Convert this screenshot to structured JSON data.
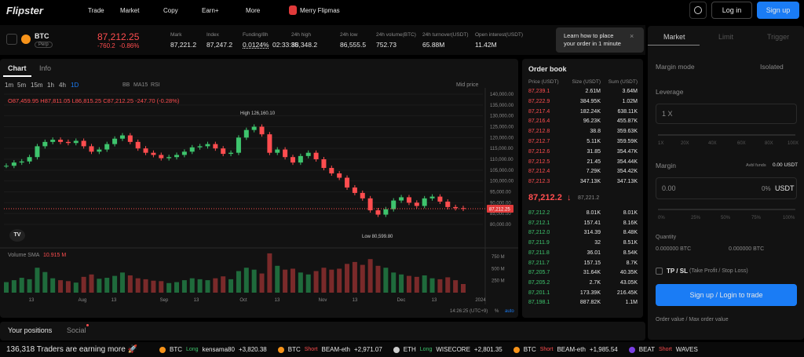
{
  "nav": {
    "logo": "Flipster",
    "menu": [
      "Trade",
      "Market",
      "Copy",
      "Earn+",
      "More"
    ],
    "promo": "Merry Flipmas",
    "login": "Log in",
    "signup": "Sign up"
  },
  "ticker": {
    "symbol": "BTC",
    "badge": "Perp",
    "price": "87,212.25",
    "change": "-760.2",
    "change_pct": "-0.86%",
    "stats": [
      {
        "label": "Mark",
        "value": "87,221.2"
      },
      {
        "label": "Index",
        "value": "87,247.2"
      },
      {
        "label": "Funding/8h",
        "value": "0.0124%",
        "extra": "02:33:35"
      },
      {
        "label": "24h high",
        "value": "88,348.2"
      },
      {
        "label": "24h low",
        "value": "86,555.5"
      },
      {
        "label": "24h volume(BTC)",
        "value": "752.73"
      },
      {
        "label": "24h turnover(USDT)",
        "value": "65.88M"
      },
      {
        "label": "Open interest(USDT)",
        "value": "11.42M"
      }
    ]
  },
  "tooltip": "Learn how to place your order in 1 minute",
  "chart": {
    "tabs": [
      "Chart",
      "Info"
    ],
    "intervals": [
      "1m",
      "5m",
      "15m",
      "1h",
      "4h",
      "1D"
    ],
    "indicators": [
      "BB",
      "MA15",
      "RSI"
    ],
    "price_source": "Mid price",
    "ohlc": "O87,459.95 H87,811.05 L86,815.25 C87,212.25 -247.70 (-0.28%)",
    "high_label": "High 126,160.10",
    "low_label": "Low 80,599.80",
    "last_price_label": "87,212.25",
    "volume_label": "Volume SMA",
    "volume_value": "10.915 M",
    "ylim": [
      80000,
      140000
    ],
    "yticks": [
      {
        "value": 140000,
        "label": "140,000.00"
      },
      {
        "value": 135000,
        "label": "135,000.00"
      },
      {
        "value": 130000,
        "label": "130,000.00"
      },
      {
        "value": 125000,
        "label": "125,000.00"
      },
      {
        "value": 120000,
        "label": "120,000.00"
      },
      {
        "value": 115000,
        "label": "115,000.00"
      },
      {
        "value": 110000,
        "label": "110,000.00"
      },
      {
        "value": 105000,
        "label": "105,000.00"
      },
      {
        "value": 100000,
        "label": "100,000.00"
      },
      {
        "value": 95000,
        "label": "95,000.00"
      },
      {
        "value": 90000,
        "label": "90,000.00"
      },
      {
        "value": 85000,
        "label": "85,000.00"
      },
      {
        "value": 80000,
        "label": "80,000.00"
      }
    ],
    "vlim": [
      0,
      900
    ],
    "vticks": [
      {
        "value": 750,
        "label": "750 M"
      },
      {
        "value": 500,
        "label": "500 M"
      },
      {
        "value": 250,
        "label": "250 M"
      }
    ],
    "xlabels": [
      "13",
      "Aug",
      "13",
      "Sep",
      "13",
      "Oct",
      "13",
      "Nov",
      "13",
      "Dec",
      "13",
      "2024"
    ],
    "time": "14:26:25 (UTC+9)",
    "scale_percent": "%",
    "scale_auto": "auto",
    "closes": [
      107000,
      108500,
      109000,
      111000,
      116000,
      118000,
      119000,
      118000,
      117500,
      118500,
      116000,
      113500,
      114500,
      117000,
      119500,
      121000,
      118000,
      115000,
      113000,
      112000,
      110500,
      111000,
      112000,
      113500,
      115500,
      116000,
      117000,
      115000,
      112500,
      113000,
      120000,
      123500,
      125000,
      121500,
      113000,
      114500,
      111000,
      108500,
      111500,
      113000,
      110000,
      106000,
      103500,
      101500,
      97000,
      94500,
      92000,
      86500,
      84500,
      87000,
      91000,
      92500,
      90000,
      88500,
      92000,
      92800,
      90500,
      88000,
      87500,
      87212
    ],
    "volumes": [
      220,
      260,
      310,
      280,
      520,
      430,
      300,
      260,
      240,
      210,
      330,
      380,
      290,
      310,
      350,
      420,
      360,
      300,
      280,
      250,
      240,
      200,
      220,
      260,
      300,
      280,
      260,
      300,
      340,
      280,
      450,
      520,
      480,
      400,
      820,
      560,
      480,
      500,
      420,
      380,
      450,
      520,
      480,
      500,
      600,
      640,
      580,
      700,
      560,
      520,
      420,
      380,
      350,
      330,
      360,
      300,
      280,
      320,
      260,
      180
    ]
  },
  "orderbook": {
    "title": "Order book",
    "columns": [
      "Price (USDT)",
      "Size (USDT)",
      "Sum (USDT)"
    ],
    "asks": [
      [
        "87,239.1",
        "2.61M",
        "3.64M"
      ],
      [
        "87,222.9",
        "384.95K",
        "1.02M"
      ],
      [
        "87,217.4",
        "182.24K",
        "638.11K"
      ],
      [
        "87,216.4",
        "96.23K",
        "455.87K"
      ],
      [
        "87,212.8",
        "38.8",
        "359.63K"
      ],
      [
        "87,212.7",
        "5.11K",
        "359.59K"
      ],
      [
        "87,212.6",
        "31.85",
        "354.47K"
      ],
      [
        "87,212.5",
        "21.45",
        "354.44K"
      ],
      [
        "87,212.4",
        "7.29K",
        "354.42K"
      ],
      [
        "87,212.3",
        "347.13K",
        "347.13K"
      ]
    ],
    "mid_price": "87,212.2",
    "mid_arrow": "↓",
    "mark_price": "87,221.2",
    "bids": [
      [
        "87,212.2",
        "8.01K",
        "8.01K"
      ],
      [
        "87,212.1",
        "157.41",
        "8.16K"
      ],
      [
        "87,212.0",
        "314.39",
        "8.48K"
      ],
      [
        "87,211.9",
        "32",
        "8.51K"
      ],
      [
        "87,211.8",
        "36.01",
        "8.54K"
      ],
      [
        "87,211.7",
        "157.15",
        "8.7K"
      ],
      [
        "87,205.7",
        "31.64K",
        "40.35K"
      ],
      [
        "87,205.2",
        "2.7K",
        "43.05K"
      ],
      [
        "87,201.1",
        "173.39K",
        "216.45K"
      ],
      [
        "87,198.1",
        "887.82K",
        "1.1M"
      ]
    ]
  },
  "order_form": {
    "tabs": [
      "Market",
      "Limit",
      "Trigger"
    ],
    "margin_mode": "Margin mode",
    "margin_mode_value": "Isolated",
    "leverage": "Leverage",
    "leverage_value": "1 X",
    "leverage_marks": [
      "1X",
      "20X",
      "40X",
      "60X",
      "80X",
      "100X"
    ],
    "margin": "Margin",
    "avbl_label": "Avbl funds",
    "avbl_value": "0.00 USDT",
    "margin_value": "0.00",
    "margin_pct": "0%",
    "margin_unit": "USDT",
    "pct_marks": [
      "0%",
      "25%",
      "50%",
      "75%",
      "100%"
    ],
    "quantity": "Quantity",
    "qty_values": [
      "0.000000 BTC",
      "0.000000 BTC"
    ],
    "tpsl": "TP / SL",
    "tpsl_note": "(Take Profit / Stop Loss)",
    "submit": "Sign up / Login to trade",
    "order_value": "Order value / Max order value"
  },
  "positions": {
    "tabs": [
      "Your positions",
      "Social"
    ]
  },
  "feed": {
    "headline": "136,318 Traders are earning more 🚀",
    "items": [
      {
        "coin": "BTC",
        "side": "Long",
        "user": "kensama80",
        "pnl": "+3,820.38"
      },
      {
        "coin": "BTC",
        "side": "Short",
        "user": "BEAM-eth",
        "pnl": "+2,971.07"
      },
      {
        "coin": "ETH",
        "side": "Long",
        "user": "WISECORE",
        "pnl": "+2,801.35"
      },
      {
        "coin": "BTC",
        "side": "Short",
        "user": "BEAM-eth",
        "pnl": "+1,985.54"
      },
      {
        "coin": "BEAT",
        "side": "Short",
        "user": "WAVES"
      }
    ]
  }
}
